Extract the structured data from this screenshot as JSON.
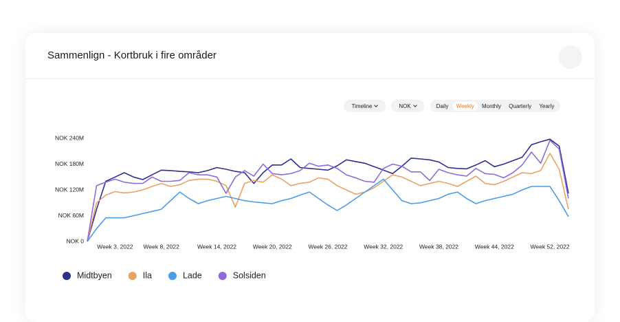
{
  "header": {
    "title": "Sammenlign - Kortbruk i fire områder"
  },
  "controls": {
    "dropdowns": [
      "Timeline",
      "NOK"
    ],
    "periods": [
      "Daily",
      "Weekly",
      "Monthly",
      "Quarterly",
      "Yearly"
    ],
    "selected": 1
  },
  "chart_data": {
    "type": "line",
    "categories": [
      null,
      null,
      null,
      "Week 3, 2022",
      null,
      null,
      null,
      null,
      "Week 8, 2022",
      null,
      null,
      null,
      null,
      null,
      "Week 14, 2022",
      null,
      null,
      null,
      null,
      null,
      "Week 20, 2022",
      null,
      null,
      null,
      null,
      null,
      "Week 26, 2022",
      null,
      null,
      null,
      null,
      null,
      "Week 32, 2022",
      null,
      null,
      null,
      null,
      null,
      "Week 38, 2022",
      null,
      null,
      null,
      null,
      null,
      "Week 44, 2022",
      null,
      null,
      null,
      null,
      null,
      "Week 52, 2022",
      null,
      null
    ],
    "ylim": [
      0,
      240
    ],
    "yticks": [
      {
        "value": 0,
        "label": "NOK 0"
      },
      {
        "value": 60,
        "label": "NOK 60M"
      },
      {
        "value": 120,
        "label": "NOK 120M"
      },
      {
        "value": 180,
        "label": "NOK 180M"
      },
      {
        "value": 240,
        "label": "NOK 240M"
      }
    ],
    "grid": false,
    "series": [
      {
        "name": "Midtbyen",
        "color": "#2b2f8f",
        "values": [
          0,
          75,
          140,
          150,
          160,
          150,
          144,
          155,
          166,
          165,
          163,
          162,
          160,
          165,
          172,
          168,
          163,
          160,
          135,
          160,
          178,
          178,
          192,
          172,
          170,
          168,
          166,
          176,
          190,
          186,
          182,
          174,
          166,
          158,
          175,
          194,
          192,
          190,
          185,
          172,
          170,
          169,
          178,
          188,
          174,
          180,
          188,
          196,
          225,
          232,
          238,
          222,
          112
        ]
      },
      {
        "name": "Ila",
        "color": "#e9a262",
        "values": [
          0,
          90,
          108,
          116,
          113,
          115,
          120,
          128,
          135,
          128,
          132,
          142,
          145,
          145,
          140,
          130,
          80,
          135,
          142,
          138,
          155,
          145,
          130,
          135,
          138,
          148,
          145,
          130,
          120,
          110,
          115,
          125,
          140,
          155,
          150,
          140,
          130,
          135,
          140,
          135,
          128,
          140,
          152,
          135,
          132,
          140,
          150,
          160,
          158,
          165,
          205,
          168,
          75
        ]
      },
      {
        "name": "Lade",
        "color": "#4a9be8",
        "values": [
          0,
          30,
          55,
          55,
          55,
          60,
          65,
          70,
          75,
          95,
          115,
          100,
          88,
          95,
          100,
          105,
          100,
          95,
          92,
          90,
          88,
          95,
          100,
          108,
          115,
          100,
          85,
          72,
          85,
          100,
          115,
          130,
          145,
          120,
          95,
          88,
          90,
          95,
          100,
          110,
          115,
          100,
          88,
          95,
          100,
          105,
          110,
          120,
          128,
          128,
          128,
          95,
          58
        ]
      },
      {
        "name": "Solsiden",
        "color": "#8e6bd9",
        "values": [
          0,
          130,
          138,
          145,
          138,
          135,
          135,
          150,
          140,
          140,
          142,
          160,
          155,
          155,
          150,
          112,
          150,
          165,
          152,
          180,
          158,
          155,
          158,
          165,
          182,
          175,
          178,
          170,
          155,
          148,
          140,
          138,
          170,
          180,
          175,
          162,
          162,
          142,
          168,
          160,
          155,
          152,
          170,
          158,
          156,
          148,
          160,
          178,
          208,
          182,
          235,
          215,
          100
        ]
      }
    ]
  }
}
